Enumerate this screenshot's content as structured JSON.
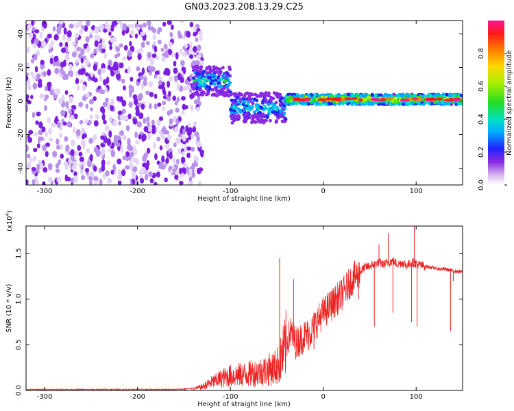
{
  "title": "GN03.2023.208.13.29.C25",
  "colors": {
    "snr_line": "#ee2222",
    "spectrogram_scatter": "#7b1fe0"
  },
  "chart_data": [
    {
      "type": "heatmap",
      "xlabel": "Height of straight line (km)",
      "ylabel": "Frequency (Hz)",
      "xlim": [
        -320,
        150
      ],
      "ylim": [
        -50,
        48
      ],
      "x_ticks": [
        -300,
        -200,
        -100,
        0,
        100
      ],
      "y_ticks": [
        -40,
        -20,
        0,
        20,
        40
      ],
      "colorbar": {
        "label": "Normalized spectral amplitude",
        "range": [
          0,
          1
        ],
        "ticks": [
          "0.0",
          "0.2",
          "0.4",
          "0.6",
          "0.8"
        ],
        "colormap": "rainbow (purple to red)"
      },
      "features": [
        {
          "x_range": [
            -320,
            -140
          ],
          "freq_range": [
            -50,
            48
          ],
          "amplitude": 0.15,
          "description_level": "noise"
        },
        {
          "x_range": [
            -140,
            -100
          ],
          "freq_center": 12,
          "amplitude": 0.3
        },
        {
          "x_range": [
            -100,
            -40
          ],
          "freq_center": -4,
          "amplitude": 0.3
        },
        {
          "x_range": [
            -40,
            150
          ],
          "freq_center": 1,
          "amplitude": 0.55
        }
      ]
    },
    {
      "type": "line",
      "xlabel": "Height of straight line (km)",
      "ylabel": "SNR (10 * v/v)",
      "y_multiplier_label": "(x10",
      "y_multiplier_exp": "4",
      "xlim": [
        -320,
        150
      ],
      "ylim": [
        0,
        1.8
      ],
      "x_ticks": [
        -300,
        -200,
        -100,
        0,
        100
      ],
      "y_ticks": [
        "0.0",
        "0.5",
        "1.0",
        "1.5"
      ],
      "series": [
        {
          "x": [
            -320,
            -280,
            -240,
            -200,
            -160,
            -140,
            -130,
            -120,
            -110,
            -100,
            -90,
            -80,
            -70,
            -60,
            -50,
            -45,
            -40,
            -35,
            -30,
            -25,
            -20,
            -15,
            -10,
            -5,
            0,
            5,
            10,
            15,
            20,
            25,
            30,
            35,
            40,
            45,
            50,
            55,
            60,
            65,
            70,
            75,
            80,
            85,
            90,
            95,
            100,
            105,
            110,
            115,
            120,
            125,
            130,
            135,
            140,
            145,
            150
          ],
          "y": [
            0.01,
            0.01,
            0.01,
            0.01,
            0.01,
            0.02,
            0.04,
            0.09,
            0.13,
            0.16,
            0.17,
            0.18,
            0.2,
            0.22,
            0.26,
            0.35,
            0.5,
            0.65,
            0.52,
            0.55,
            0.6,
            0.62,
            0.7,
            0.78,
            0.85,
            0.9,
            0.95,
            1.0,
            1.05,
            1.12,
            1.2,
            1.25,
            1.3,
            1.35,
            1.36,
            1.38,
            1.4,
            1.38,
            1.4,
            1.42,
            1.38,
            1.4,
            1.37,
            1.4,
            1.39,
            1.37,
            1.36,
            1.35,
            1.34,
            1.33,
            1.33,
            1.32,
            1.31,
            1.3,
            1.3
          ]
        }
      ],
      "spikes": [
        {
          "x": -47,
          "y": 1.45
        },
        {
          "x": -32,
          "y": 1.22
        },
        {
          "x": -10,
          "y": 0.45
        },
        {
          "x": 38,
          "y": 1.0
        },
        {
          "x": 55,
          "y": 0.7
        },
        {
          "x": 60,
          "y": 1.6
        },
        {
          "x": 70,
          "y": 1.72
        },
        {
          "x": 75,
          "y": 0.85
        },
        {
          "x": 95,
          "y": 0.75
        },
        {
          "x": 98,
          "y": 1.85
        },
        {
          "x": 101,
          "y": 0.7
        },
        {
          "x": 137,
          "y": 0.65
        },
        {
          "x": 140,
          "y": 1.2
        }
      ]
    }
  ]
}
